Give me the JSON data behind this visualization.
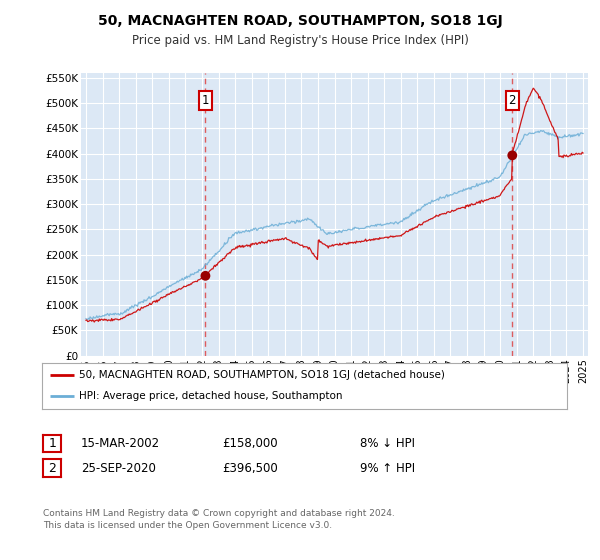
{
  "title": "50, MACNAGHTEN ROAD, SOUTHAMPTON, SO18 1GJ",
  "subtitle": "Price paid vs. HM Land Registry's House Price Index (HPI)",
  "background_color": "#ffffff",
  "plot_bg_color": "#dce8f5",
  "grid_color": "#ffffff",
  "yticks": [
    0,
    50000,
    100000,
    150000,
    200000,
    250000,
    300000,
    350000,
    400000,
    450000,
    500000,
    550000
  ],
  "ytick_labels": [
    "£0",
    "£50K",
    "£100K",
    "£150K",
    "£200K",
    "£250K",
    "£300K",
    "£350K",
    "£400K",
    "£450K",
    "£500K",
    "£550K"
  ],
  "xlim_start": 1994.7,
  "xlim_end": 2025.3,
  "ylim_min": 0,
  "ylim_max": 560000,
  "transaction1_x": 2002.21,
  "transaction1_y": 158000,
  "transaction2_x": 2020.73,
  "transaction2_y": 396500,
  "sale_line_color": "#cc0000",
  "hpi_line_color": "#6baed6",
  "sale_dot_color": "#990000",
  "vline_color": "#dd4444",
  "footer_text": "Contains HM Land Registry data © Crown copyright and database right 2024.\nThis data is licensed under the Open Government Licence v3.0.",
  "legend_entries": [
    "50, MACNAGHTEN ROAD, SOUTHAMPTON, SO18 1GJ (detached house)",
    "HPI: Average price, detached house, Southampton"
  ],
  "table_data": [
    [
      "1",
      "15-MAR-2002",
      "£158,000",
      "8% ↓ HPI"
    ],
    [
      "2",
      "25-SEP-2020",
      "£396,500",
      "9% ↑ HPI"
    ]
  ]
}
